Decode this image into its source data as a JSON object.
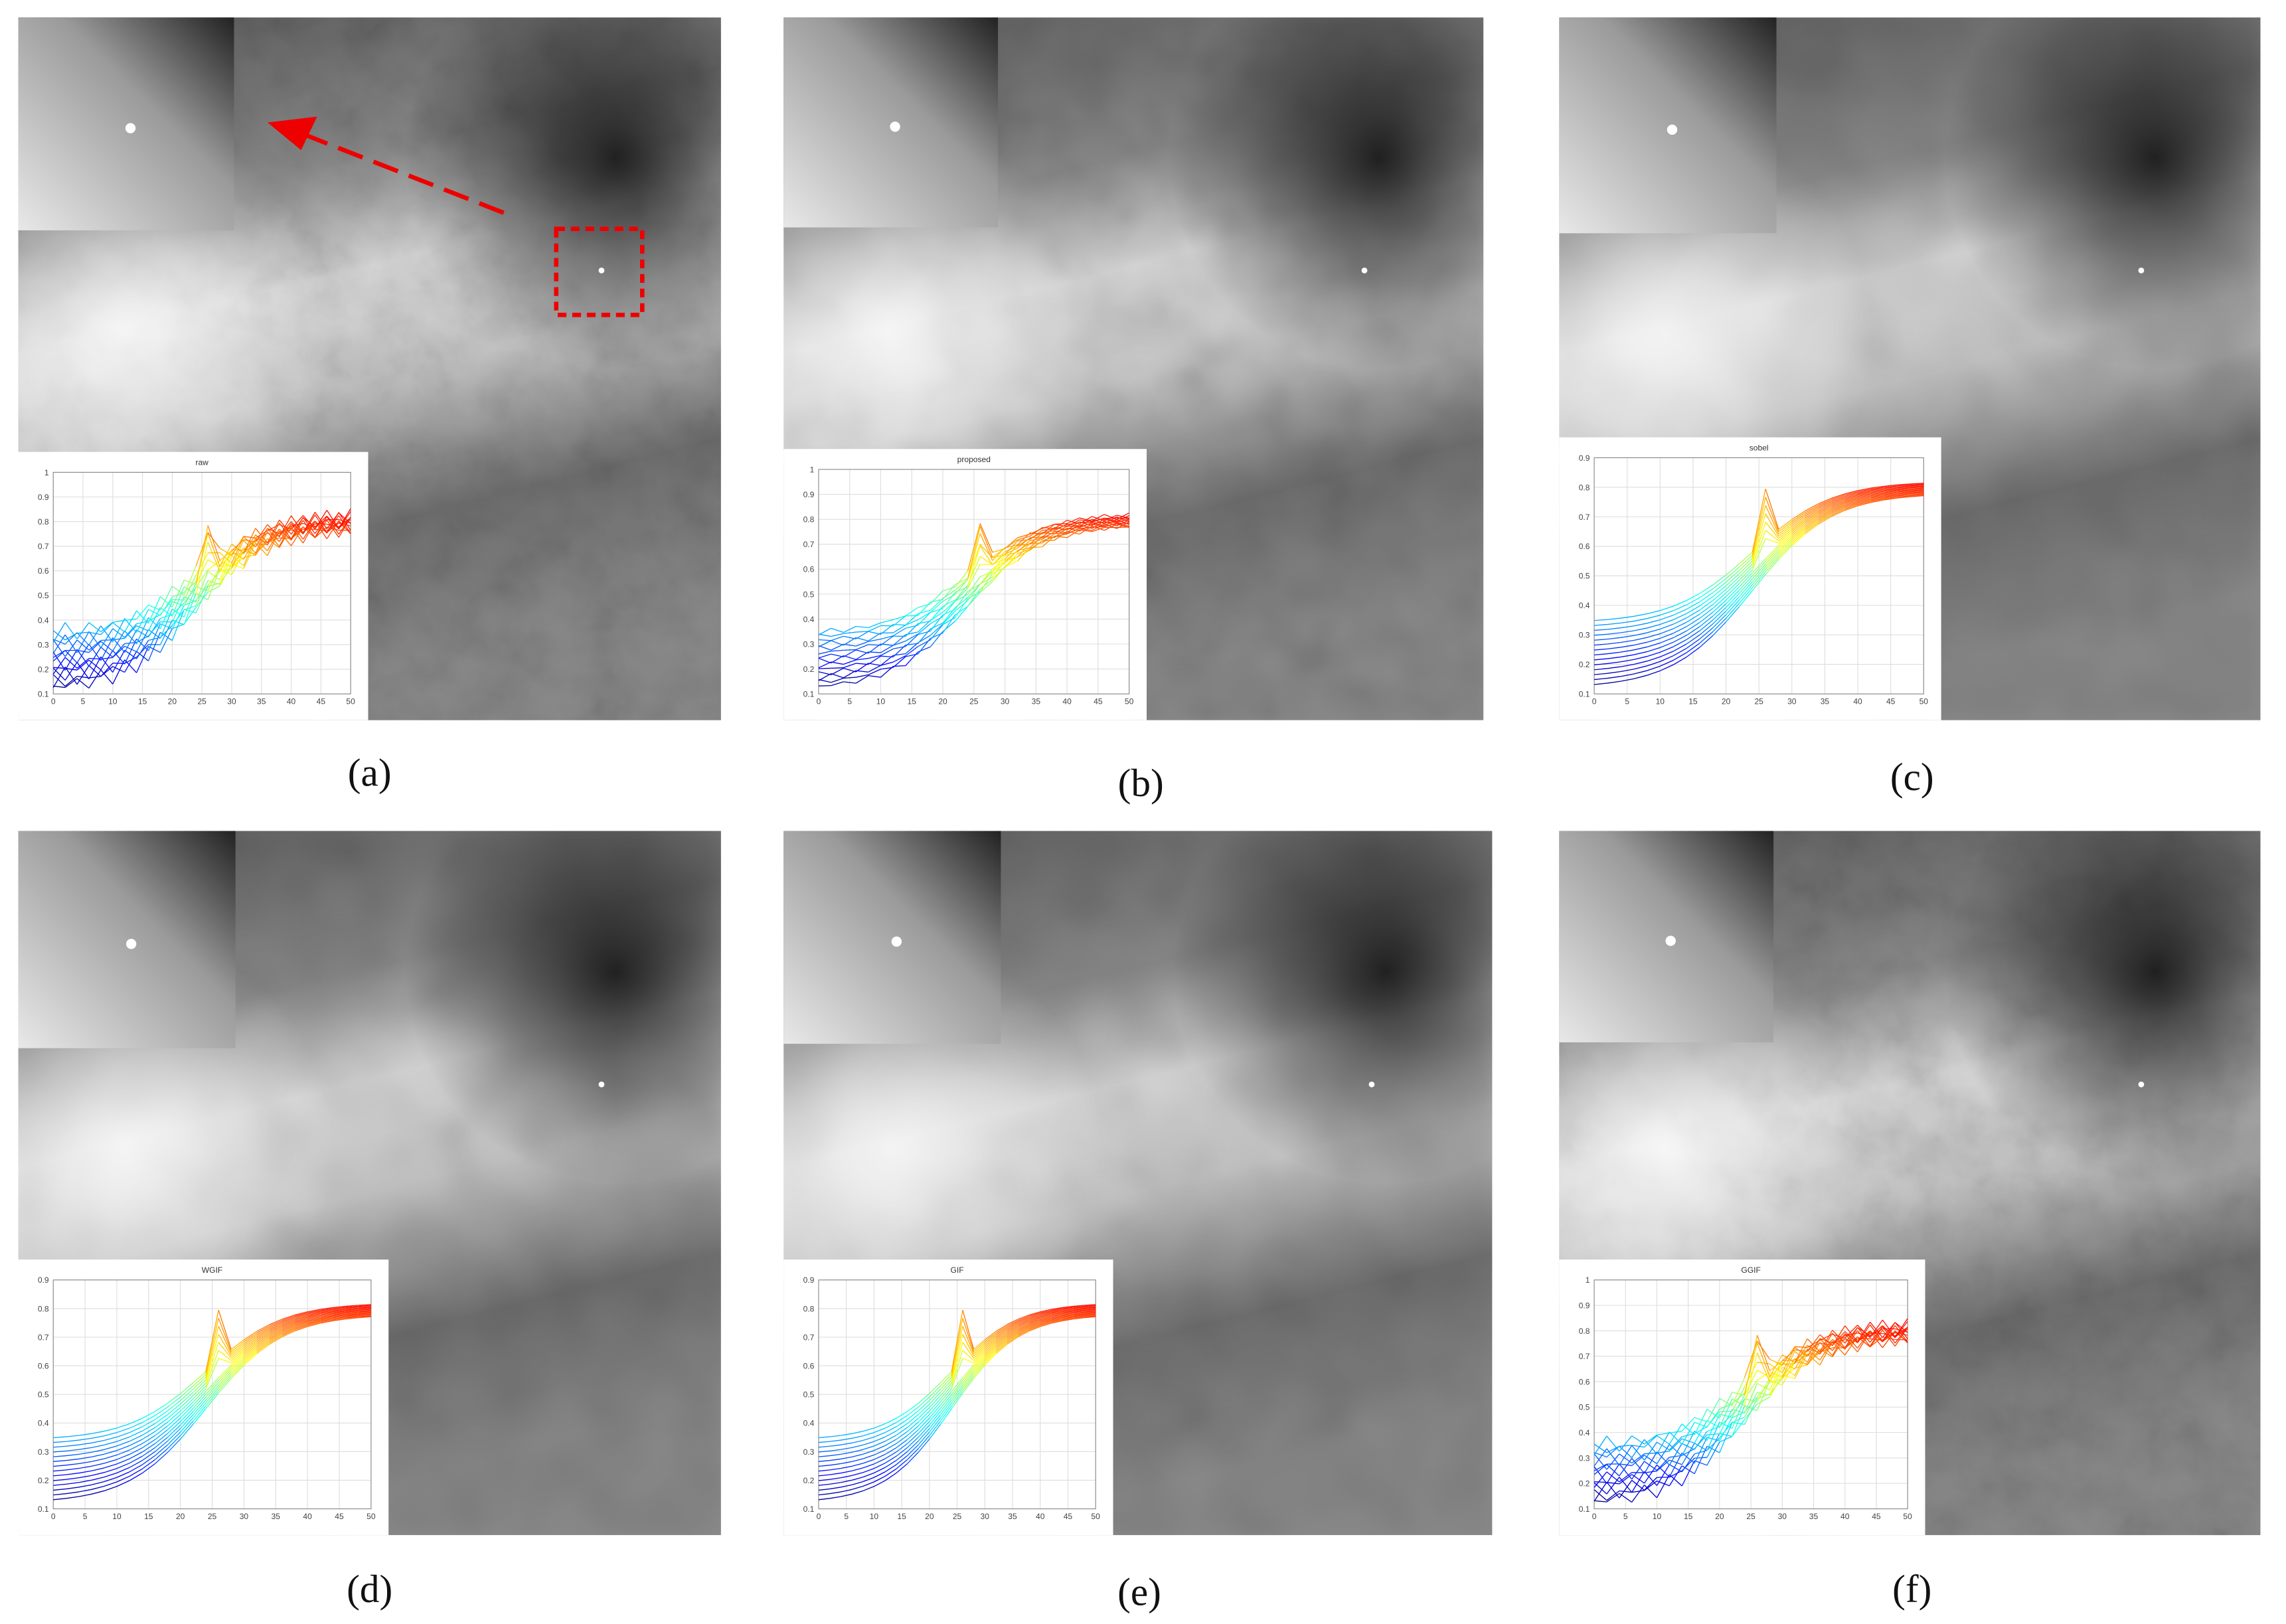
{
  "panels": [
    {
      "label": "(a)",
      "inset": {
        "title": "raw",
        "xticks": [
          0,
          5,
          10,
          15,
          20,
          25,
          30,
          35,
          40,
          45,
          50
        ],
        "yticks": [
          0.1,
          0.2,
          0.3,
          0.4,
          0.5,
          0.6,
          0.7,
          0.8,
          0.9,
          1
        ]
      }
    },
    {
      "label": "(b)",
      "inset": {
        "title": "proposed",
        "xticks": [
          0,
          5,
          10,
          15,
          20,
          25,
          30,
          35,
          40,
          45,
          50
        ],
        "yticks": [
          0.1,
          0.2,
          0.3,
          0.4,
          0.5,
          0.6,
          0.7,
          0.8,
          0.9,
          1
        ]
      }
    },
    {
      "label": "(c)",
      "inset": {
        "title": "sobel",
        "xticks": [
          0,
          5,
          10,
          15,
          20,
          25,
          30,
          35,
          40,
          45,
          50
        ],
        "yticks": [
          0.1,
          0.2,
          0.3,
          0.4,
          0.5,
          0.6,
          0.7,
          0.8,
          0.9
        ]
      }
    },
    {
      "label": "(d)",
      "inset": {
        "title": "WGIF",
        "xticks": [
          0,
          5,
          10,
          15,
          20,
          25,
          30,
          35,
          40,
          45,
          50
        ],
        "yticks": [
          0.1,
          0.2,
          0.3,
          0.4,
          0.5,
          0.6,
          0.7,
          0.8,
          0.9
        ]
      }
    },
    {
      "label": "(e)",
      "inset": {
        "title": "GIF",
        "xticks": [
          0,
          5,
          10,
          15,
          20,
          25,
          30,
          35,
          40,
          45,
          50
        ],
        "yticks": [
          0.1,
          0.2,
          0.3,
          0.4,
          0.5,
          0.6,
          0.7,
          0.8,
          0.9
        ]
      }
    },
    {
      "label": "(f)",
      "inset": {
        "title": "GGIF",
        "xticks": [
          0,
          5,
          10,
          15,
          20,
          25,
          30,
          35,
          40,
          45,
          50
        ],
        "yticks": [
          0.1,
          0.2,
          0.3,
          0.4,
          0.5,
          0.6,
          0.7,
          0.8,
          0.9,
          1
        ]
      }
    }
  ]
}
